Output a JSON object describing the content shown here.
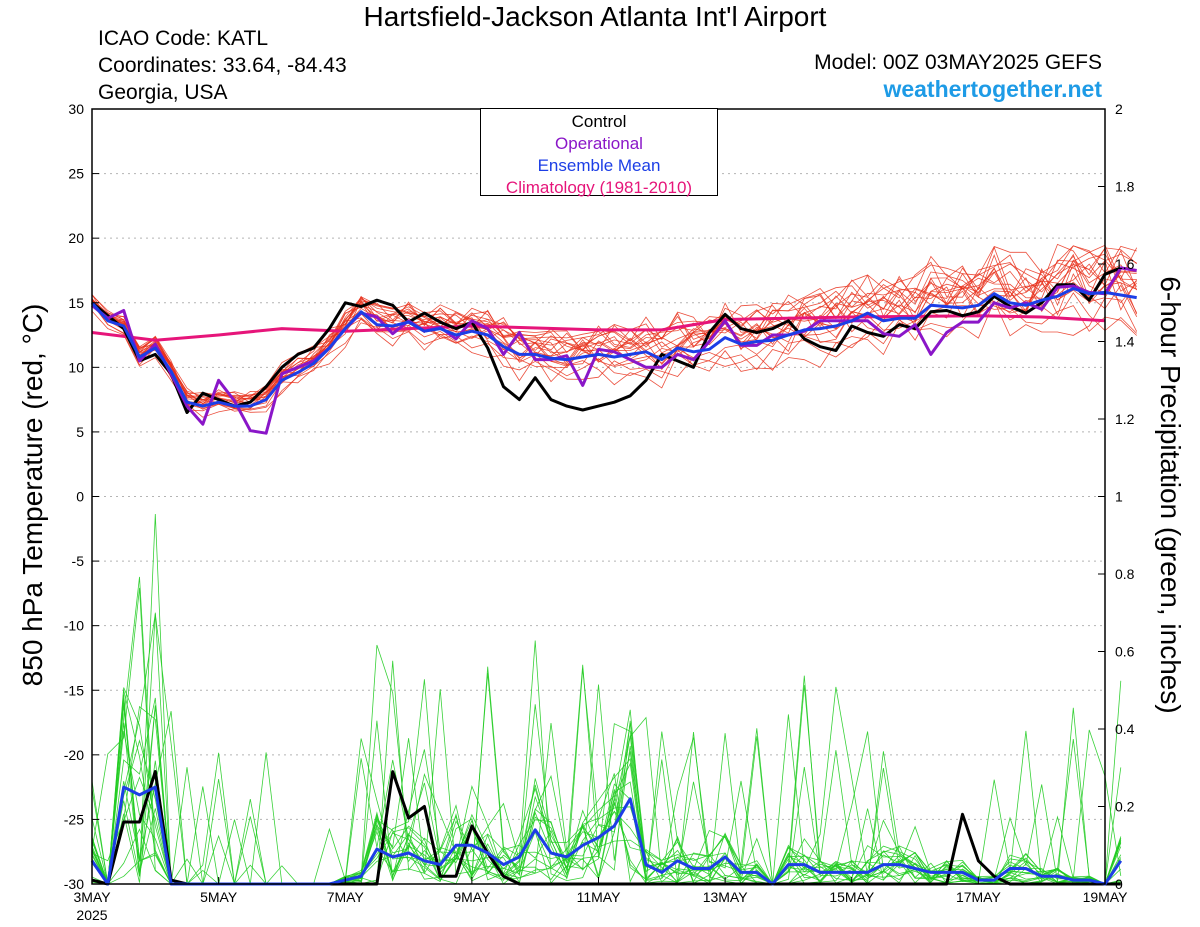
{
  "header": {
    "title": "Hartsfield-Jackson Atlanta Int'l Airport",
    "icao": "ICAO Code: KATL",
    "coordinates": "Coordinates: 33.64, -84.43",
    "region": "Georgia, USA",
    "model": "Model: 00Z 03MAY2025 GEFS",
    "site": "weathertogether.net"
  },
  "colors": {
    "members_temp": "#e8311c",
    "members_precip": "#22cc22",
    "control": "#000000",
    "operational": "#8a16c8",
    "ensemble_mean": "#1c3ee6",
    "climatology": "#e6157a"
  },
  "chart_data": {
    "type": "line",
    "title": "Hartsfield-Jackson Atlanta Int'l Airport",
    "ylabel": "850 hPa Temperature (red, °C)",
    "y2label": "6-hour Precipitation (green, inches)",
    "ylim": [
      -30,
      30
    ],
    "y2lim": [
      0,
      2
    ],
    "yticks": [
      -30,
      -25,
      -20,
      -15,
      -10,
      -5,
      0,
      5,
      10,
      15,
      20,
      25,
      30
    ],
    "y2ticks": [
      "0",
      "0.2",
      "0.4",
      "0.6",
      "0.8",
      "1",
      "1.2",
      "1.4",
      "1.6",
      "1.8",
      "2"
    ],
    "x_unit": "days from 00Z 3MAY2025, 6-hour steps",
    "xlim": [
      0,
      16
    ],
    "xticks": [
      {
        "x": 0,
        "label": "3MAY",
        "sub": "2025"
      },
      {
        "x": 2,
        "label": "5MAY"
      },
      {
        "x": 4,
        "label": "7MAY"
      },
      {
        "x": 6,
        "label": "9MAY"
      },
      {
        "x": 8,
        "label": "11MAY"
      },
      {
        "x": 10,
        "label": "13MAY"
      },
      {
        "x": 12,
        "label": "15MAY"
      },
      {
        "x": 14,
        "label": "17MAY"
      },
      {
        "x": 16,
        "label": "19MAY"
      }
    ],
    "grid": true,
    "legend": {
      "placement": "top-center",
      "entries": [
        {
          "name": "Control",
          "color": "#000000"
        },
        {
          "name": "Operational",
          "color": "#8a16c8"
        },
        {
          "name": "Ensemble Mean",
          "color": "#1c3ee6"
        },
        {
          "name": "Climatology (1981-2010)",
          "color": "#e6157a"
        }
      ]
    },
    "series": [
      {
        "name": "Climatology (1981-2010)",
        "axis": "temp",
        "x": [
          0,
          1,
          2,
          3,
          4,
          6,
          8,
          9,
          10,
          12,
          14,
          15,
          16
        ],
        "values": [
          12.7,
          12.1,
          12.5,
          13.0,
          12.8,
          13.2,
          12.9,
          12.9,
          13.7,
          13.9,
          14.0,
          13.9,
          13.6
        ]
      },
      {
        "name": "Control",
        "axis": "temp",
        "values": [
          15.0,
          14.0,
          13.0,
          10.5,
          11.0,
          9.5,
          6.5,
          8.0,
          7.5,
          7.0,
          7.3,
          8.5,
          10.0,
          11.0,
          11.5,
          13.0,
          15.0,
          14.7,
          15.2,
          14.8,
          13.5,
          14.2,
          13.5,
          13.0,
          13.5,
          11.5,
          8.5,
          7.5,
          9.2,
          7.5,
          7.0,
          6.7,
          7.0,
          7.3,
          7.8,
          9.0,
          11.0,
          10.5,
          10.0,
          12.7,
          14.1,
          13.0,
          12.7,
          13.0,
          13.6,
          12.2,
          11.6,
          11.3,
          13.2,
          12.7,
          12.4,
          13.3,
          13.0,
          14.3,
          14.4,
          14.0,
          14.3,
          15.5,
          14.7,
          14.2,
          15.0,
          16.4,
          16.4,
          15.2,
          17.2,
          17.7
        ]
      },
      {
        "name": "Operational",
        "axis": "temp",
        "values": [
          14.8,
          13.8,
          14.4,
          10.5,
          11.8,
          9.5,
          7.0,
          5.6,
          9.0,
          7.4,
          5.1,
          4.9,
          9.5,
          10.0,
          10.5,
          11.5,
          13.0,
          14.2,
          13.9,
          12.6,
          13.6,
          12.8,
          13.1,
          12.2,
          13.6,
          13.0,
          11.0,
          12.7,
          10.6,
          10.6,
          10.9,
          8.6,
          11.4,
          11.2,
          10.6,
          10.0,
          10.0,
          11.0,
          10.6,
          12.0,
          13.6,
          11.7,
          11.7,
          12.5,
          12.5,
          12.8,
          13.6,
          13.6,
          13.6,
          13.6,
          12.6,
          12.4,
          13.3,
          11.0,
          12.7,
          13.5,
          13.5,
          15.0,
          14.6,
          15.0,
          14.5,
          16.2,
          16.3,
          15.8,
          15.7,
          17.7,
          17.5
        ]
      },
      {
        "name": "Ensemble Mean",
        "axis": "temp",
        "values": [
          15.0,
          13.6,
          13.2,
          10.8,
          11.5,
          9.7,
          7.3,
          7.0,
          7.3,
          7.0,
          7.0,
          7.5,
          9.0,
          9.6,
          10.3,
          11.5,
          13.0,
          14.3,
          13.3,
          13.2,
          13.5,
          12.8,
          13.0,
          12.5,
          12.8,
          12.5,
          11.6,
          11.0,
          11.0,
          10.7,
          10.6,
          10.8,
          11.0,
          10.8,
          11.0,
          11.2,
          10.6,
          11.5,
          11.2,
          11.4,
          12.3,
          11.8,
          12.0,
          12.1,
          12.5,
          12.9,
          13.0,
          13.2,
          13.6,
          14.2,
          13.6,
          13.8,
          13.8,
          14.8,
          14.7,
          14.6,
          14.8,
          15.7,
          15.0,
          14.8,
          15.2,
          15.5,
          16.1,
          15.7,
          15.8,
          15.6,
          15.4
        ]
      },
      {
        "name": "Control",
        "axis": "precip",
        "values": [
          0.01,
          0.0,
          0.16,
          0.16,
          0.29,
          0.01,
          0.0,
          0.0,
          0.0,
          0.0,
          0.0,
          0.0,
          0.0,
          0.0,
          0.0,
          0.0,
          0.0,
          0.0,
          0.0,
          0.29,
          0.17,
          0.2,
          0.02,
          0.02,
          0.15,
          0.08,
          0.02,
          0.0,
          0.0,
          0.0,
          0.0,
          0.0,
          0.0,
          0.0,
          0.0,
          0.0,
          0.0,
          0.0,
          0.0,
          0.0,
          0.0,
          0.0,
          0.0,
          0.0,
          0.0,
          0.0,
          0.0,
          0.0,
          0.0,
          0.0,
          0.0,
          0.0,
          0.0,
          0.0,
          0.0,
          0.18,
          0.06,
          0.02,
          0.0,
          0.0,
          0.0,
          0.0,
          0.0,
          0.0,
          0.0,
          0.0
        ]
      },
      {
        "name": "Ensemble Mean",
        "axis": "precip",
        "values": [
          0.06,
          0.0,
          0.25,
          0.23,
          0.25,
          0.0,
          0.0,
          0.0,
          0.0,
          0.0,
          0.0,
          0.0,
          0.0,
          0.0,
          0.0,
          0.0,
          0.01,
          0.02,
          0.09,
          0.07,
          0.08,
          0.06,
          0.05,
          0.1,
          0.1,
          0.08,
          0.05,
          0.07,
          0.14,
          0.08,
          0.07,
          0.1,
          0.12,
          0.15,
          0.22,
          0.05,
          0.03,
          0.06,
          0.04,
          0.04,
          0.07,
          0.03,
          0.03,
          0.0,
          0.05,
          0.05,
          0.03,
          0.03,
          0.03,
          0.03,
          0.05,
          0.05,
          0.04,
          0.03,
          0.03,
          0.03,
          0.01,
          0.01,
          0.04,
          0.04,
          0.02,
          0.02,
          0.01,
          0.01,
          0.0,
          0.06
        ]
      },
      {
        "name": "Ensemble Members",
        "axis": "temp",
        "values": []
      },
      {
        "name": "Ensemble Members",
        "axis": "precip",
        "values": []
      }
    ]
  }
}
